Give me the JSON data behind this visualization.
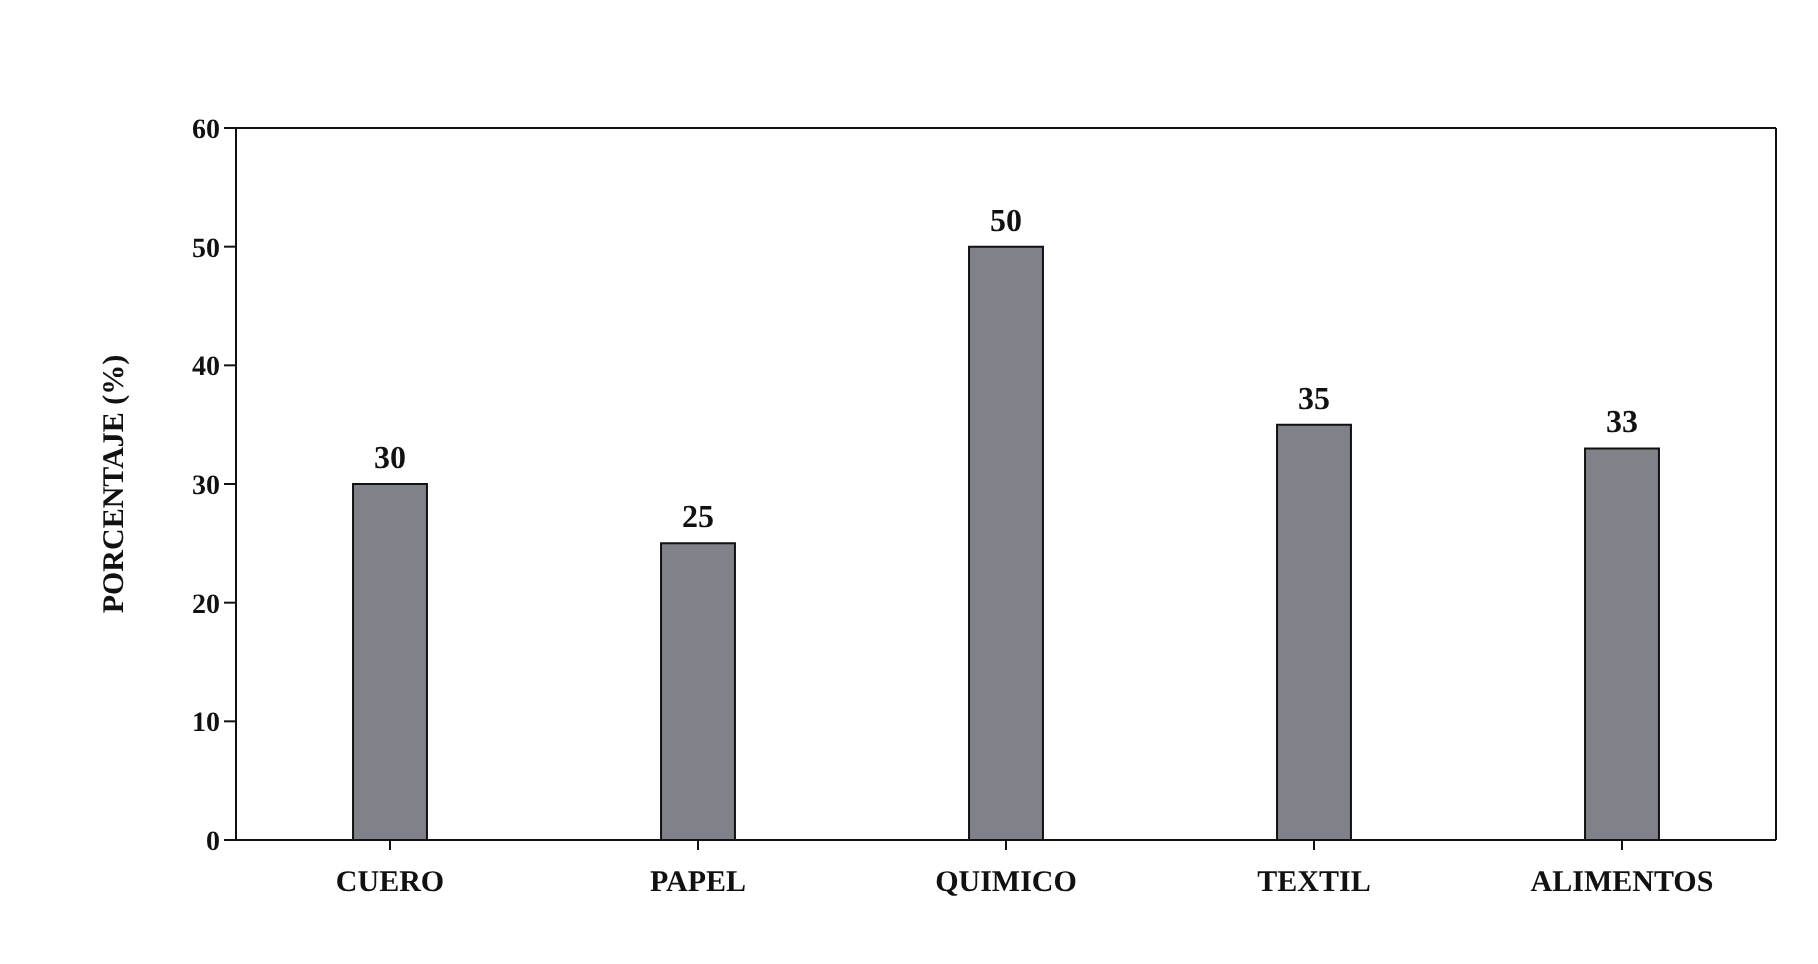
{
  "chart_data": {
    "type": "bar",
    "ylabel": "PORCENTAJE (%)",
    "categories": [
      "CUERO",
      "PAPEL",
      "QUIMICO",
      "TEXTIL",
      "ALIMENTOS"
    ],
    "values": [
      30,
      25,
      50,
      35,
      33
    ],
    "color": "#7f8389",
    "ylim": [
      0,
      60
    ],
    "yticks": [
      0,
      10,
      20,
      30,
      40,
      50,
      60
    ],
    "grid": false,
    "data_labels": true
  }
}
